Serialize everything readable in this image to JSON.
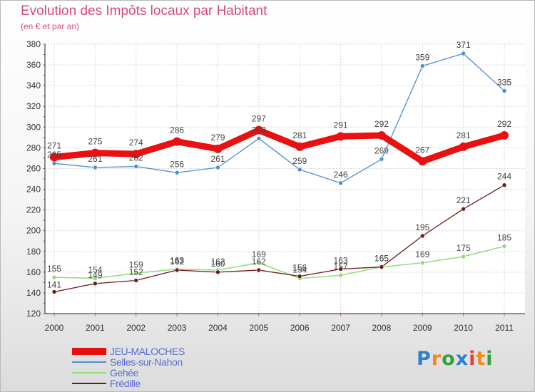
{
  "chart_data": {
    "type": "line",
    "title": "Evolution des Impôts locaux par Habitant",
    "subtitle": "(en € et par an)",
    "xlabel": "",
    "ylabel": "",
    "categories": [
      "2000",
      "2001",
      "2002",
      "2003",
      "2004",
      "2005",
      "2006",
      "2007",
      "2008",
      "2009",
      "2010",
      "2011"
    ],
    "ylim": [
      120,
      380
    ],
    "yticks": [
      "120",
      "140",
      "160",
      "180",
      "200",
      "220",
      "240",
      "260",
      "280",
      "300",
      "320",
      "340",
      "360",
      "380"
    ],
    "grid": true,
    "legend_position": "bottom-left",
    "series": [
      {
        "name": "JEU-MALOCHES",
        "color": "#e81010",
        "values": [
          271,
          275,
          274,
          286,
          279,
          297,
          281,
          291,
          292,
          267,
          281,
          292
        ],
        "labels": [
          "271",
          "275",
          "274",
          "286",
          "279",
          "297",
          "281",
          "291",
          "292",
          "267",
          "281",
          "292"
        ]
      },
      {
        "name": "Selles-sur-Nahon",
        "color": "#4a8fcf",
        "values": [
          265,
          261,
          262,
          256,
          261,
          289,
          259,
          246,
          269,
          359,
          371,
          335
        ],
        "labels": [
          "265",
          "261",
          "262",
          "256",
          "261",
          "289",
          "259",
          "246",
          "269",
          "359",
          "371",
          "335"
        ]
      },
      {
        "name": "Gehée",
        "color": "#92dc78",
        "values": [
          155,
          154,
          159,
          163,
          162,
          169,
          154,
          157,
          165,
          169,
          175,
          185
        ],
        "labels": [
          "155",
          "154",
          "159",
          "163",
          "162",
          "169",
          "154",
          "157",
          "165",
          "169",
          "175",
          "185"
        ]
      },
      {
        "name": "Frédille",
        "color": "#6e1a1a",
        "values": [
          141,
          149,
          152,
          162,
          160,
          162,
          156,
          163,
          165,
          195,
          221,
          244
        ],
        "labels": [
          "141",
          "149",
          "152",
          "162",
          "160",
          "162",
          "156",
          "163",
          "165",
          "195",
          "221",
          "244"
        ]
      }
    ]
  },
  "logo": {
    "letters": [
      "P",
      "r",
      "o",
      "x",
      "i",
      "t",
      "i"
    ],
    "colors": [
      "#2f7fd0",
      "#f08a1c",
      "#3aa13a",
      "#2f7fd0",
      "#e84040",
      "#f08a1c",
      "#3aa13a"
    ]
  }
}
